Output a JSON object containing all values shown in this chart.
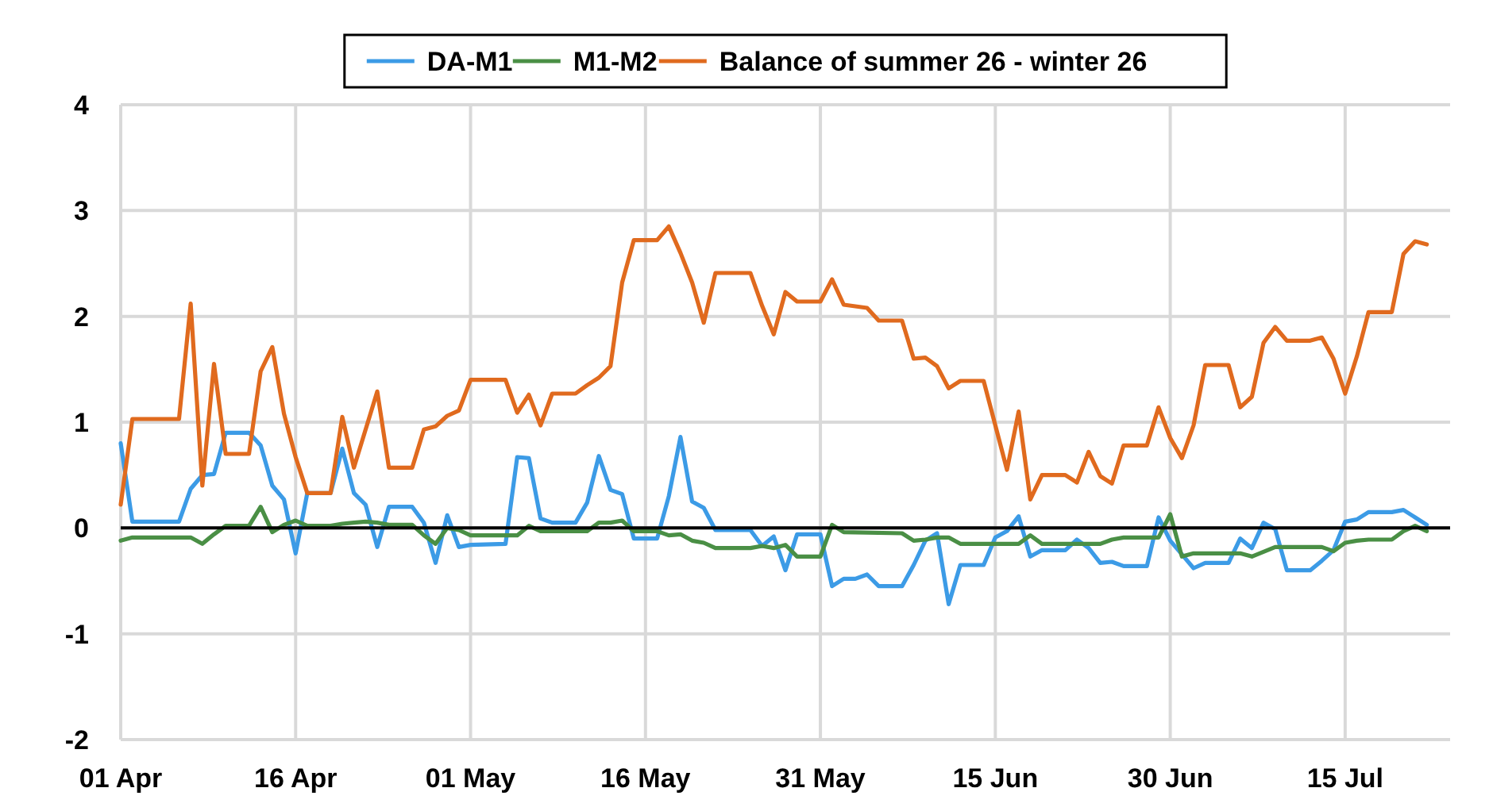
{
  "chart_data": {
    "type": "line",
    "legend": "top",
    "grid": true,
    "marker": "none",
    "line_style": "solid",
    "xlim": [
      "--04-01",
      "--07-24"
    ],
    "xticks": [
      {
        "value": "--04-01",
        "label": "01 Apr"
      },
      {
        "value": "--04-16",
        "label": "16 Apr"
      },
      {
        "value": "--05-01",
        "label": "01 May"
      },
      {
        "value": "--05-16",
        "label": "16 May"
      },
      {
        "value": "--05-31",
        "label": "31 May"
      },
      {
        "value": "--06-15",
        "label": "15 Jun"
      },
      {
        "value": "--06-30",
        "label": "30 Jun"
      },
      {
        "value": "--07-15",
        "label": "15 Jul"
      }
    ],
    "ylim": [
      -2,
      4
    ],
    "yticks": [
      -2,
      -1,
      0,
      1,
      2,
      3,
      4
    ],
    "series": [
      {
        "name": "DA-M1",
        "color": "#3c9be6",
        "x": [
          "--04-01",
          "--04-02",
          "--04-06",
          "--04-07",
          "--04-08",
          "--04-09",
          "--04-10",
          "--04-12",
          "--04-13",
          "--04-14",
          "--04-15",
          "--04-16",
          "--04-17",
          "--04-19",
          "--04-20",
          "--04-21",
          "--04-22",
          "--04-23",
          "--04-24",
          "--04-26",
          "--04-27",
          "--04-28",
          "--04-29",
          "--04-30",
          "--05-01",
          "--05-04",
          "--05-05",
          "--05-06",
          "--05-07",
          "--05-08",
          "--05-10",
          "--05-11",
          "--05-12",
          "--05-13",
          "--05-14",
          "--05-15",
          "--05-17",
          "--05-18",
          "--05-19",
          "--05-20",
          "--05-21",
          "--05-22",
          "--05-25",
          "--05-26",
          "--05-27",
          "--05-28",
          "--05-29",
          "--05-31",
          "--06-01",
          "--06-02",
          "--06-03",
          "--06-04",
          "--06-05",
          "--06-07",
          "--06-08",
          "--06-09",
          "--06-10",
          "--06-11",
          "--06-12",
          "--06-14",
          "--06-15",
          "--06-16",
          "--06-17",
          "--06-18",
          "--06-19",
          "--06-21",
          "--06-22",
          "--06-23",
          "--06-24",
          "--06-25",
          "--06-26",
          "--06-28",
          "--06-29",
          "--06-30",
          "--07-01",
          "--07-02",
          "--07-03",
          "--07-05",
          "--07-06",
          "--07-07",
          "--07-08",
          "--07-09",
          "--07-10",
          "--07-12",
          "--07-13",
          "--07-14",
          "--07-15",
          "--07-16",
          "--07-17",
          "--07-19",
          "--07-20",
          "--07-21",
          "--07-22"
        ],
        "values": [
          0.8,
          0.06,
          0.06,
          0.37,
          0.5,
          0.51,
          0.9,
          0.9,
          0.78,
          0.4,
          0.27,
          -0.24,
          0.33,
          0.33,
          0.75,
          0.33,
          0.22,
          -0.18,
          0.2,
          0.2,
          0.05,
          -0.33,
          0.12,
          -0.18,
          -0.16,
          -0.15,
          0.67,
          0.66,
          0.09,
          0.05,
          0.05,
          0.24,
          0.68,
          0.36,
          0.32,
          -0.1,
          -0.1,
          0.3,
          0.86,
          0.25,
          0.19,
          -0.02,
          -0.02,
          -0.17,
          -0.08,
          -0.4,
          -0.06,
          -0.06,
          -0.55,
          -0.48,
          -0.48,
          -0.44,
          -0.55,
          -0.55,
          -0.35,
          -0.12,
          -0.05,
          -0.72,
          -0.35,
          -0.35,
          -0.09,
          -0.03,
          0.11,
          -0.27,
          -0.21,
          -0.21,
          -0.11,
          -0.19,
          -0.33,
          -0.32,
          -0.36,
          -0.36,
          0.1,
          -0.12,
          -0.25,
          -0.38,
          -0.33,
          -0.33,
          -0.1,
          -0.19,
          0.05,
          -0.01,
          -0.4,
          -0.4,
          -0.31,
          -0.21,
          0.06,
          0.08,
          0.15,
          0.15,
          0.17,
          0.1,
          0.03
        ]
      },
      {
        "name": "M1-M2",
        "color": "#4a8f45",
        "x": [
          "--04-01",
          "--04-02",
          "--04-07",
          "--04-08",
          "--04-09",
          "--04-10",
          "--04-12",
          "--04-13",
          "--04-14",
          "--04-15",
          "--04-16",
          "--04-17",
          "--04-19",
          "--04-20",
          "--04-21",
          "--04-22",
          "--04-23",
          "--04-24",
          "--04-26",
          "--04-27",
          "--04-28",
          "--04-29",
          "--04-30",
          "--05-01",
          "--05-05",
          "--05-06",
          "--05-07",
          "--05-11",
          "--05-12",
          "--05-13",
          "--05-14",
          "--05-15",
          "--05-17",
          "--05-18",
          "--05-19",
          "--05-20",
          "--05-21",
          "--05-22",
          "--05-25",
          "--05-26",
          "--05-27",
          "--05-28",
          "--05-29",
          "--05-31",
          "--06-01",
          "--06-02",
          "--06-07",
          "--06-08",
          "--06-09",
          "--06-10",
          "--06-11",
          "--06-12",
          "--06-17",
          "--06-18",
          "--06-19",
          "--06-24",
          "--06-25",
          "--06-26",
          "--06-29",
          "--06-30",
          "--07-01",
          "--07-02",
          "--07-06",
          "--07-07",
          "--07-09",
          "--07-13",
          "--07-14",
          "--07-15",
          "--07-16",
          "--07-17",
          "--07-19",
          "--07-20",
          "--07-21",
          "--07-22"
        ],
        "values": [
          -0.12,
          -0.09,
          -0.09,
          -0.15,
          -0.06,
          0.02,
          0.02,
          0.2,
          -0.04,
          0.03,
          0.07,
          0.02,
          0.02,
          0.04,
          0.05,
          0.06,
          0.05,
          0.03,
          0.03,
          -0.07,
          -0.15,
          0.0,
          -0.02,
          -0.07,
          -0.07,
          0.02,
          -0.03,
          -0.03,
          0.05,
          0.05,
          0.07,
          -0.03,
          -0.03,
          -0.07,
          -0.06,
          -0.12,
          -0.14,
          -0.19,
          -0.19,
          -0.17,
          -0.19,
          -0.16,
          -0.27,
          -0.27,
          0.03,
          -0.04,
          -0.05,
          -0.12,
          -0.11,
          -0.09,
          -0.09,
          -0.15,
          -0.15,
          -0.07,
          -0.15,
          -0.15,
          -0.11,
          -0.09,
          -0.09,
          0.13,
          -0.27,
          -0.24,
          -0.24,
          -0.27,
          -0.18,
          -0.18,
          -0.22,
          -0.14,
          -0.12,
          -0.11,
          -0.11,
          -0.03,
          0.02,
          -0.03
        ]
      },
      {
        "name": "Balance of summer 26 - winter 26",
        "color": "#e06a1e",
        "x": [
          "--04-01",
          "--04-02",
          "--04-06",
          "--04-07",
          "--04-08",
          "--04-09",
          "--04-10",
          "--04-12",
          "--04-13",
          "--04-14",
          "--04-15",
          "--04-16",
          "--04-17",
          "--04-19",
          "--04-20",
          "--04-21",
          "--04-23",
          "--04-24",
          "--04-26",
          "--04-27",
          "--04-28",
          "--04-29",
          "--04-30",
          "--05-01",
          "--05-04",
          "--05-05",
          "--05-06",
          "--05-07",
          "--05-08",
          "--05-10",
          "--05-11",
          "--05-12",
          "--05-13",
          "--05-14",
          "--05-15",
          "--05-17",
          "--05-18",
          "--05-19",
          "--05-20",
          "--05-21",
          "--05-22",
          "--05-25",
          "--05-26",
          "--05-27",
          "--05-28",
          "--05-29",
          "--05-31",
          "--06-01",
          "--06-02",
          "--06-04",
          "--06-05",
          "--06-07",
          "--06-08",
          "--06-09",
          "--06-10",
          "--06-11",
          "--06-12",
          "--06-14",
          "--06-15",
          "--06-16",
          "--06-17",
          "--06-18",
          "--06-19",
          "--06-21",
          "--06-22",
          "--06-23",
          "--06-24",
          "--06-25",
          "--06-26",
          "--06-28",
          "--06-29",
          "--06-30",
          "--07-01",
          "--07-02",
          "--07-03",
          "--07-05",
          "--07-06",
          "--07-07",
          "--07-08",
          "--07-09",
          "--07-10",
          "--07-12",
          "--07-13",
          "--07-14",
          "--07-15",
          "--07-16",
          "--07-17",
          "--07-19",
          "--07-20",
          "--07-21",
          "--07-22"
        ],
        "values": [
          0.22,
          1.03,
          1.03,
          2.12,
          0.4,
          1.55,
          0.7,
          0.7,
          1.48,
          1.71,
          1.08,
          0.67,
          0.33,
          0.33,
          1.05,
          0.57,
          1.29,
          0.57,
          0.57,
          0.93,
          0.96,
          1.06,
          1.11,
          1.4,
          1.4,
          1.09,
          1.26,
          0.97,
          1.27,
          1.27,
          1.35,
          1.42,
          1.53,
          2.32,
          2.72,
          2.72,
          2.85,
          2.6,
          2.32,
          1.94,
          2.41,
          2.41,
          2.1,
          1.83,
          2.23,
          2.14,
          2.14,
          2.35,
          2.11,
          2.08,
          1.96,
          1.96,
          1.6,
          1.61,
          1.53,
          1.32,
          1.39,
          1.39,
          0.97,
          0.55,
          1.1,
          0.27,
          0.5,
          0.5,
          0.43,
          0.72,
          0.49,
          0.42,
          0.78,
          0.78,
          1.14,
          0.85,
          0.66,
          0.97,
          1.54,
          1.54,
          1.14,
          1.24,
          1.75,
          1.9,
          1.77,
          1.77,
          1.8,
          1.6,
          1.27,
          1.62,
          2.04,
          2.04,
          2.59,
          2.71,
          2.68
        ]
      }
    ]
  }
}
